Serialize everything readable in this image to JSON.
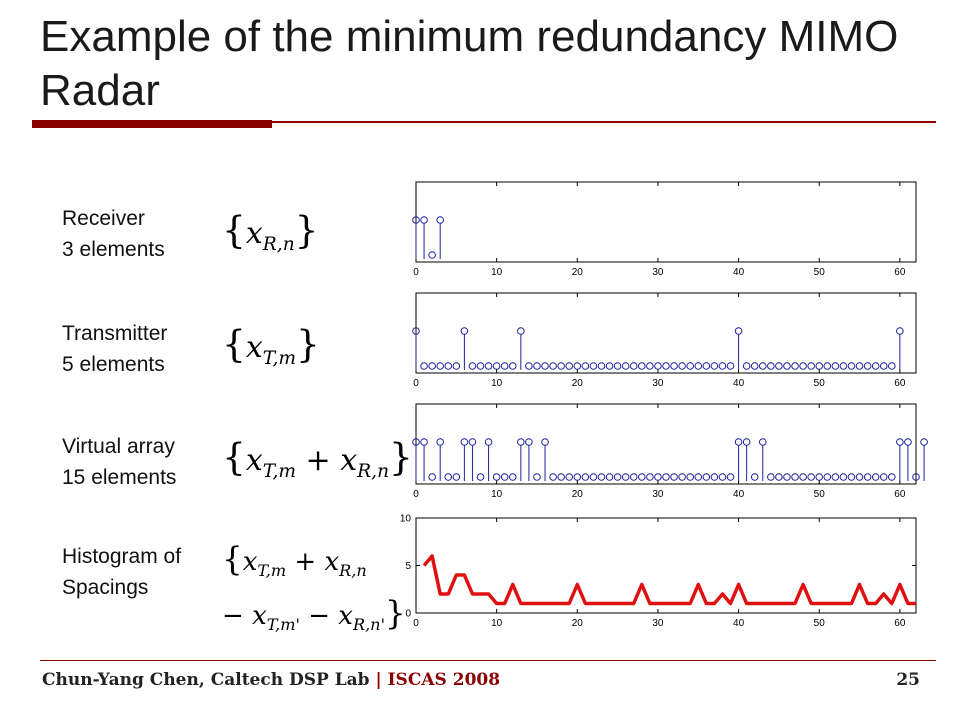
{
  "slide": {
    "title": "Example of the minimum redundancy MIMO Radar",
    "footer_author": "Chun-Yang Chen, Caltech DSP Lab",
    "footer_separator": " | ",
    "footer_conference": "ISCAS 2008",
    "page_number": "25",
    "accent_color": "#8b0000"
  },
  "rows": [
    {
      "label_line1": "Receiver",
      "label_line2": "3 elements"
    },
    {
      "label_line1": "Transmitter",
      "label_line2": "5 elements"
    },
    {
      "label_line1": "Virtual array",
      "label_line2": "15 elements"
    },
    {
      "label_line1": "Histogram of",
      "label_line2": "Spacings"
    }
  ],
  "formulas": {
    "receiver": {
      "open": "{",
      "var": "x",
      "sub": "R,n",
      "close": "}"
    },
    "transmitter": {
      "open": "{",
      "var": "x",
      "sub": "T,m",
      "close": "}"
    },
    "virtual": {
      "open": "{",
      "var1": "x",
      "sub1": "T,m",
      "plus": "+",
      "var2": "x",
      "sub2": "R,n",
      "close": "}"
    },
    "histogram": {
      "open": "{",
      "var1": "x",
      "sub1": "T,m",
      "plus": "+",
      "var2": "x",
      "sub2": "R,n",
      "minus1": "−",
      "var3": "x",
      "sub3": "T,m'",
      "minus2": "−",
      "var4": "x",
      "sub4": "R,n'",
      "close": "}"
    }
  },
  "chart_data": [
    {
      "type": "stem",
      "xlim": [
        0,
        62
      ],
      "xticks": [
        0,
        10,
        20,
        30,
        40,
        50,
        60
      ],
      "stem_color": "#1f1fa0",
      "positions": [
        0,
        1,
        3
      ],
      "points": [
        [
          0,
          1
        ],
        [
          1,
          1
        ],
        [
          2,
          0
        ],
        [
          3,
          1
        ]
      ]
    },
    {
      "type": "stem",
      "xlim": [
        0,
        62
      ],
      "xticks": [
        0,
        10,
        20,
        30,
        40,
        50,
        60
      ],
      "stem_color": "#1f1fa0",
      "positions": [
        0,
        6,
        13,
        40,
        60
      ],
      "points_all_zero_range": [
        0,
        60
      ]
    },
    {
      "type": "stem",
      "xlim": [
        0,
        62
      ],
      "xticks": [
        0,
        10,
        20,
        30,
        40,
        50,
        60
      ],
      "stem_color": "#1f1fa0",
      "positions": [
        0,
        1,
        3,
        6,
        7,
        9,
        13,
        14,
        16,
        40,
        41,
        43,
        60,
        61,
        63
      ],
      "points_all_zero_range": [
        0,
        63
      ]
    },
    {
      "type": "line",
      "xlim": [
        0,
        62
      ],
      "ylim": [
        0,
        10
      ],
      "xticks": [
        0,
        10,
        20,
        30,
        40,
        50,
        60
      ],
      "yticks": [
        0,
        5,
        10
      ],
      "line_color": "#e01010",
      "x": [
        1,
        2,
        3,
        4,
        5,
        6,
        7,
        8,
        9,
        10,
        11,
        12,
        13,
        14,
        15,
        16,
        17,
        18,
        19,
        20,
        21,
        22,
        23,
        24,
        25,
        26,
        27,
        28,
        29,
        30,
        31,
        32,
        33,
        34,
        35,
        36,
        37,
        38,
        39,
        40,
        41,
        42,
        43,
        44,
        45,
        46,
        47,
        48,
        49,
        50,
        51,
        52,
        53,
        54,
        55,
        56,
        57,
        58,
        59,
        60,
        61,
        62,
        63
      ],
      "y": [
        5,
        6,
        2,
        2,
        4,
        4,
        2,
        2,
        2,
        1,
        1,
        3,
        1,
        1,
        1,
        1,
        1,
        1,
        1,
        3,
        1,
        1,
        1,
        1,
        1,
        1,
        1,
        3,
        1,
        1,
        1,
        1,
        1,
        1,
        3,
        1,
        1,
        2,
        1,
        3,
        1,
        1,
        1,
        1,
        1,
        1,
        1,
        3,
        1,
        1,
        1,
        1,
        1,
        1,
        3,
        1,
        1,
        2,
        1,
        3,
        1,
        1,
        1
      ]
    }
  ]
}
